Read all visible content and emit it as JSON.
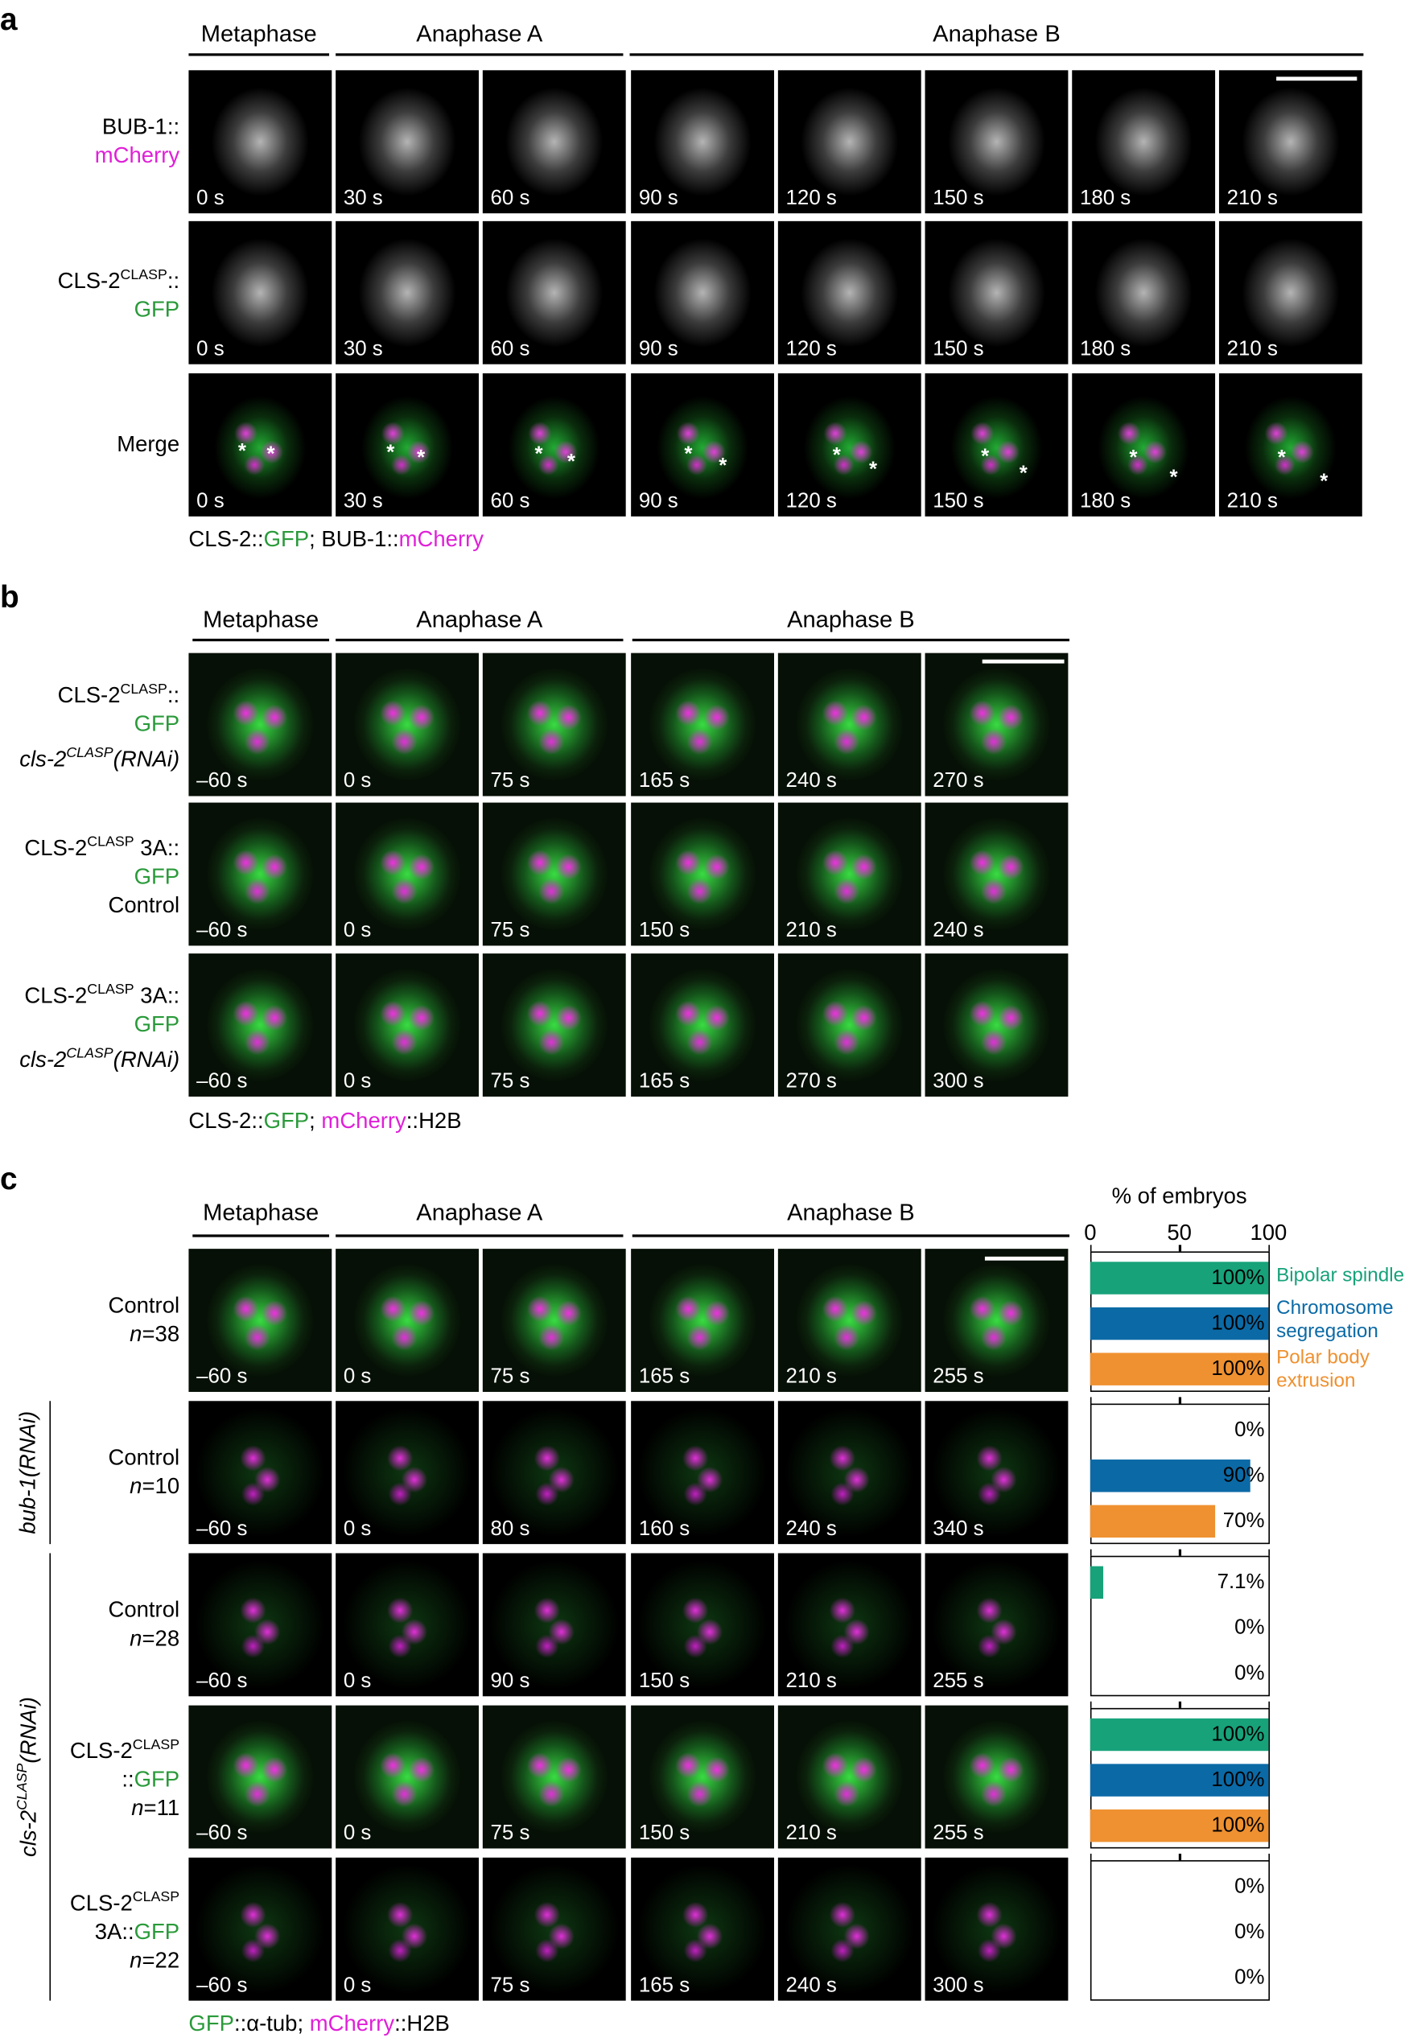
{
  "panel_a": {
    "label": "a",
    "phases": [
      "Metaphase",
      "Anaphase A",
      "Anaphase B"
    ],
    "asterisk": "*",
    "rows": [
      {
        "label": [
          [
            {
              "text": "BUB-1::"
            }
          ],
          [
            {
              "text": "mCherry",
              "style": "magenta"
            }
          ]
        ],
        "times": [
          "0 s",
          "30 s",
          "60 s",
          "90 s",
          "120 s",
          "150 s",
          "180 s",
          "210 s"
        ]
      },
      {
        "label": [
          [
            {
              "text": "CLS-2"
            },
            {
              "text": "CLASP",
              "style": "sup"
            },
            {
              "text": "::"
            }
          ],
          [
            {
              "text": "GFP",
              "style": "green"
            }
          ]
        ],
        "times": [
          "0 s",
          "30 s",
          "60 s",
          "90 s",
          "120 s",
          "150 s",
          "180 s",
          "210 s"
        ]
      },
      {
        "label": [
          [
            {
              "text": "Merge"
            }
          ]
        ],
        "times": [
          "0 s",
          "30 s",
          "60 s",
          "90 s",
          "120 s",
          "150 s",
          "180 s",
          "210 s"
        ]
      }
    ],
    "caption": [
      {
        "text": "CLS-2::"
      },
      {
        "text": "GFP",
        "style": "green"
      },
      {
        "text": "; BUB-1::"
      },
      {
        "text": "mCherry",
        "style": "magenta"
      }
    ]
  },
  "panel_b": {
    "label": "b",
    "phases": [
      "Metaphase",
      "Anaphase A",
      "Anaphase B"
    ],
    "rows": [
      {
        "label": [
          [
            {
              "text": "CLS-2"
            },
            {
              "text": "CLASP",
              "style": "sup"
            },
            {
              "text": "::"
            }
          ],
          [
            {
              "text": "GFP",
              "style": "green"
            }
          ],
          [
            {
              "text": "cls-2",
              "style": "italic"
            },
            {
              "text": "CLASP",
              "style": "sup italic"
            },
            {
              "text": "(RNAi)",
              "style": "italic"
            }
          ]
        ],
        "times": [
          "–60 s",
          "0 s",
          "75 s",
          "165 s",
          "240 s",
          "270 s"
        ]
      },
      {
        "label": [
          [
            {
              "text": "CLS-2"
            },
            {
              "text": "CLASP",
              "style": "sup"
            },
            {
              "text": " 3A::"
            }
          ],
          [
            {
              "text": "GFP",
              "style": "green"
            }
          ],
          [
            {
              "text": "Control"
            }
          ]
        ],
        "times": [
          "–60 s",
          "0 s",
          "75 s",
          "150 s",
          "210 s",
          "240 s"
        ]
      },
      {
        "label": [
          [
            {
              "text": "CLS-2"
            },
            {
              "text": "CLASP",
              "style": "sup"
            },
            {
              "text": " 3A::"
            }
          ],
          [
            {
              "text": "GFP",
              "style": "green"
            }
          ],
          [
            {
              "text": "cls-2",
              "style": "italic"
            },
            {
              "text": "CLASP",
              "style": "sup italic"
            },
            {
              "text": "(RNAi)",
              "style": "italic"
            }
          ]
        ],
        "times": [
          "–60 s",
          "0 s",
          "75 s",
          "165 s",
          "270 s",
          "300 s"
        ]
      }
    ],
    "caption": [
      {
        "text": "CLS-2::"
      },
      {
        "text": "GFP",
        "style": "green"
      },
      {
        "text": "; "
      },
      {
        "text": "mCherry",
        "style": "magenta"
      },
      {
        "text": "::H2B"
      }
    ]
  },
  "panel_c": {
    "label": "c",
    "phases": [
      "Metaphase",
      "Anaphase A",
      "Anaphase B"
    ],
    "rows": [
      {
        "label": [
          [
            {
              "text": "Control"
            }
          ],
          [
            {
              "text": "n",
              "style": "italic"
            },
            {
              "text": "=38"
            }
          ]
        ],
        "times": [
          "–60 s",
          "0 s",
          "75 s",
          "165 s",
          "210 s",
          "255 s"
        ]
      },
      {
        "label": [
          [
            {
              "text": "Control"
            }
          ],
          [
            {
              "text": "n",
              "style": "italic"
            },
            {
              "text": "=10"
            }
          ]
        ],
        "times": [
          "–60 s",
          "0 s",
          "80 s",
          "160 s",
          "240 s",
          "340 s"
        ]
      },
      {
        "label": [
          [
            {
              "text": "Control"
            }
          ],
          [
            {
              "text": "n",
              "style": "italic"
            },
            {
              "text": "=28"
            }
          ]
        ],
        "times": [
          "–60 s",
          "0 s",
          "90 s",
          "150 s",
          "210 s",
          "255 s"
        ]
      },
      {
        "label": [
          [
            {
              "text": "CLS-2"
            },
            {
              "text": "CLASP",
              "style": "sup"
            }
          ],
          [
            {
              "text": "::"
            },
            {
              "text": "GFP",
              "style": "green"
            }
          ],
          [
            {
              "text": "n",
              "style": "italic"
            },
            {
              "text": "=11"
            }
          ]
        ],
        "times": [
          "–60 s",
          "0 s",
          "75 s",
          "150 s",
          "210 s",
          "255 s"
        ]
      },
      {
        "label": [
          [
            {
              "text": "CLS-2"
            },
            {
              "text": "CLASP",
              "style": "sup"
            }
          ],
          [
            {
              "text": "3A::"
            },
            {
              "text": "GFP",
              "style": "green"
            }
          ],
          [
            {
              "text": "n",
              "style": "italic"
            },
            {
              "text": "=22"
            }
          ]
        ],
        "times": [
          "–60 s",
          "0 s",
          "75 s",
          "165 s",
          "240 s",
          "300 s"
        ]
      }
    ],
    "groups": [
      {
        "label": [
          {
            "text": "bub-1(RNAi)",
            "style": "italic"
          }
        ]
      },
      {
        "label": [
          {
            "text": "cls-2",
            "style": "italic"
          },
          {
            "text": "CLASP",
            "style": "sup italic"
          },
          {
            "text": "(RNAi)",
            "style": "italic"
          }
        ]
      }
    ],
    "caption": [
      {
        "text": "GFP",
        "style": "green"
      },
      {
        "text": "::α-tub; "
      },
      {
        "text": "mCherry",
        "style": "magenta"
      },
      {
        "text": "::H2B"
      }
    ]
  },
  "chart_data": {
    "type": "bar",
    "orientation": "horizontal",
    "xlabel": "% of embryos",
    "xlim": [
      0,
      100
    ],
    "xticks": [
      0,
      50,
      100
    ],
    "series": [
      {
        "name": "Bipolar spindle",
        "color": "#17a27a",
        "values": [
          100,
          0,
          7.1,
          100,
          0
        ],
        "value_labels": [
          "100%",
          "0%",
          "7.1%",
          "100%",
          "0%"
        ]
      },
      {
        "name": "Chromosome segregation",
        "color": "#0b6aa6",
        "values": [
          100,
          90,
          0,
          100,
          0
        ],
        "value_labels": [
          "100%",
          "90%",
          "0%",
          "100%",
          "0%"
        ]
      },
      {
        "name": "Polar body extrusion",
        "color": "#ef9130",
        "values": [
          100,
          70,
          0,
          100,
          0
        ],
        "value_labels": [
          "100%",
          "70%",
          "0%",
          "100%",
          "0%"
        ]
      }
    ]
  }
}
